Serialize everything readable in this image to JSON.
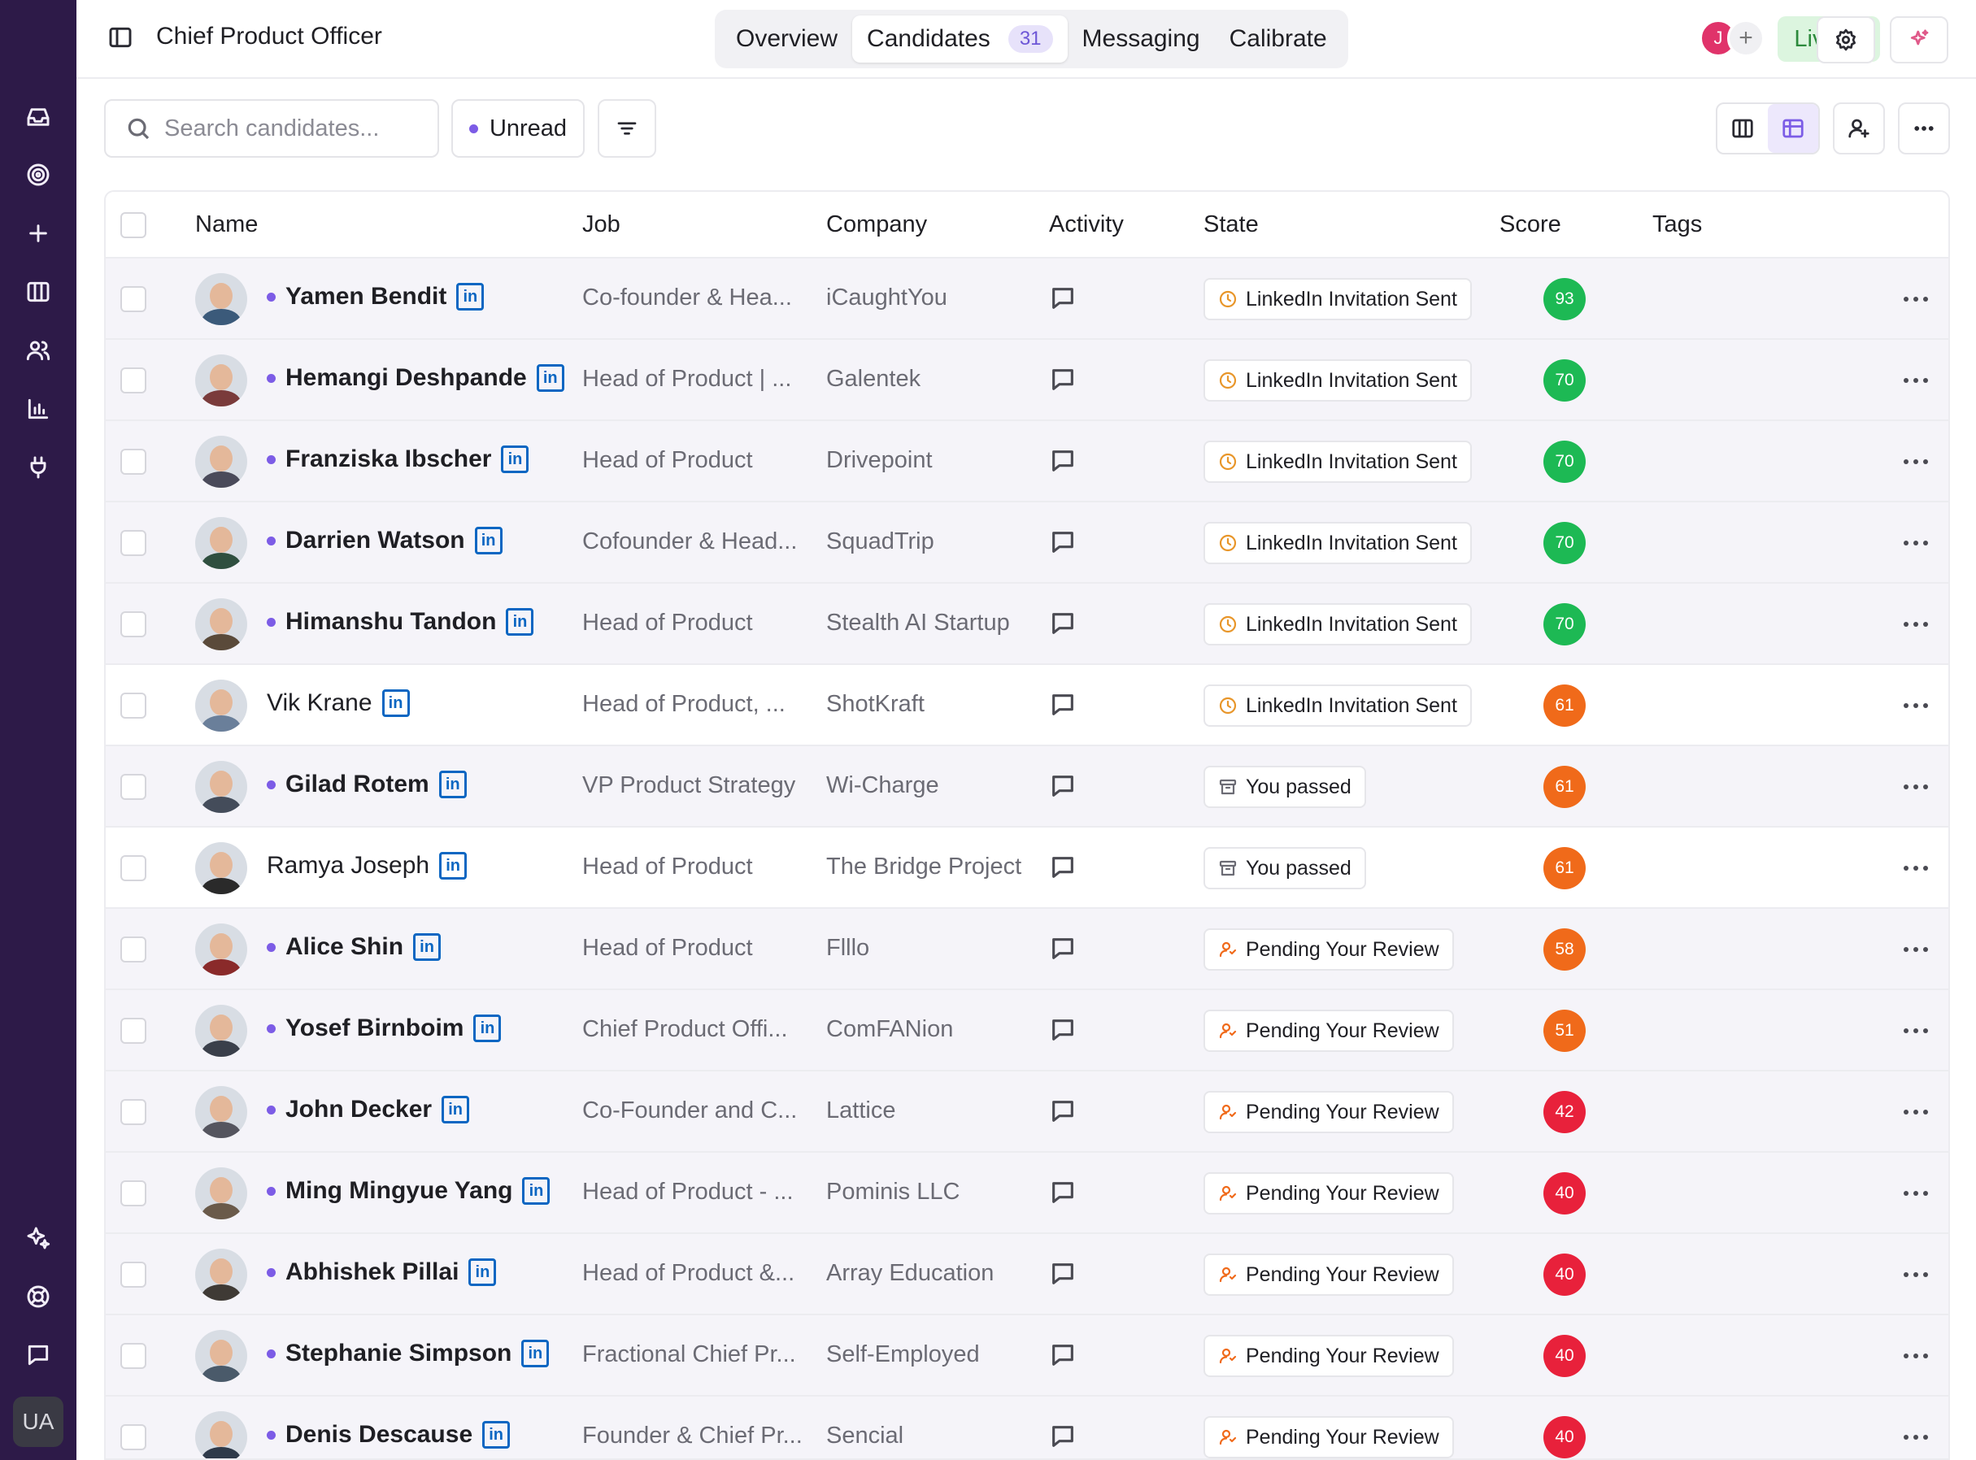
{
  "header": {
    "title": "Chief Product Officer",
    "tabs": [
      {
        "label": "Overview"
      },
      {
        "label": "Candidates",
        "count": "31"
      },
      {
        "label": "Messaging"
      },
      {
        "label": "Calibrate"
      }
    ],
    "presence_initial": "J",
    "live_label": "Live"
  },
  "rail": {
    "user_initials": "UA",
    "icons": [
      "inbox-icon",
      "target-icon",
      "plus-icon",
      "board-icon",
      "users-icon",
      "chart-icon",
      "plug-icon",
      "sparkles-icon",
      "help-icon",
      "chat-icon"
    ]
  },
  "toolbar": {
    "search_placeholder": "Search candidates...",
    "unread_label": "Unread"
  },
  "table": {
    "columns": [
      "Name",
      "Job",
      "Company",
      "Activity",
      "State",
      "Score",
      "Tags"
    ],
    "rows": [
      {
        "name": "Yamen Bendit",
        "unread": true,
        "job": "Co-founder & Hea...",
        "company": "iCaughtYou",
        "state": "LinkedIn Invitation Sent",
        "state_type": "invite",
        "score": "93"
      },
      {
        "name": "Hemangi Deshpande",
        "unread": true,
        "job": "Head of Product | ...",
        "company": "Galentek",
        "state": "LinkedIn Invitation Sent",
        "state_type": "invite",
        "score": "70"
      },
      {
        "name": "Franziska Ibscher",
        "unread": true,
        "job": "Head of Product",
        "company": "Drivepoint",
        "state": "LinkedIn Invitation Sent",
        "state_type": "invite",
        "score": "70"
      },
      {
        "name": "Darrien Watson",
        "unread": true,
        "job": "Cofounder & Head...",
        "company": "SquadTrip",
        "state": "LinkedIn Invitation Sent",
        "state_type": "invite",
        "score": "70"
      },
      {
        "name": "Himanshu Tandon",
        "unread": true,
        "job": "Head of Product",
        "company": "Stealth AI Startup",
        "state": "LinkedIn Invitation Sent",
        "state_type": "invite",
        "score": "70"
      },
      {
        "name": "Vik Krane",
        "unread": false,
        "job": "Head of Product, ...",
        "company": "ShotKraft",
        "state": "LinkedIn Invitation Sent",
        "state_type": "invite",
        "score": "61"
      },
      {
        "name": "Gilad Rotem",
        "unread": true,
        "job": "VP Product Strategy",
        "company": "Wi-Charge",
        "state": "You passed",
        "state_type": "passed",
        "score": "61"
      },
      {
        "name": "Ramya Joseph",
        "unread": false,
        "job": "Head of Product",
        "company": "The Bridge Project",
        "state": "You passed",
        "state_type": "passed",
        "score": "61"
      },
      {
        "name": "Alice Shin",
        "unread": true,
        "job": "Head of Product",
        "company": "Flllo",
        "state": "Pending Your Review",
        "state_type": "pending",
        "score": "58"
      },
      {
        "name": "Yosef Birnboim",
        "unread": true,
        "job": "Chief Product Offi...",
        "company": "ComFANion",
        "state": "Pending Your Review",
        "state_type": "pending",
        "score": "51"
      },
      {
        "name": "John Decker",
        "unread": true,
        "job": "Co-Founder and C...",
        "company": "Lattice",
        "state": "Pending Your Review",
        "state_type": "pending",
        "score": "42"
      },
      {
        "name": "Ming Mingyue Yang",
        "unread": true,
        "job": "Head of Product - ...",
        "company": "Pominis LLC",
        "state": "Pending Your Review",
        "state_type": "pending",
        "score": "40"
      },
      {
        "name": "Abhishek Pillai",
        "unread": true,
        "job": "Head of Product &...",
        "company": "Array Education",
        "state": "Pending Your Review",
        "state_type": "pending",
        "score": "40"
      },
      {
        "name": "Stephanie Simpson",
        "unread": true,
        "job": "Fractional Chief Pr...",
        "company": "Self-Employed",
        "state": "Pending Your Review",
        "state_type": "pending",
        "score": "40"
      },
      {
        "name": "Denis Descause",
        "unread": true,
        "job": "Founder & Chief Pr...",
        "company": "Sencial",
        "state": "Pending Your Review",
        "state_type": "pending",
        "score": "40"
      }
    ]
  },
  "colors": {
    "rail_bg": "#2d1a48",
    "accent": "#7c5ce6",
    "linkedin": "#0a66c2",
    "score_high": "#1db954",
    "score_mid": "#f06a1a",
    "score_low": "#e8213b",
    "live_bg": "#dcf5df"
  }
}
